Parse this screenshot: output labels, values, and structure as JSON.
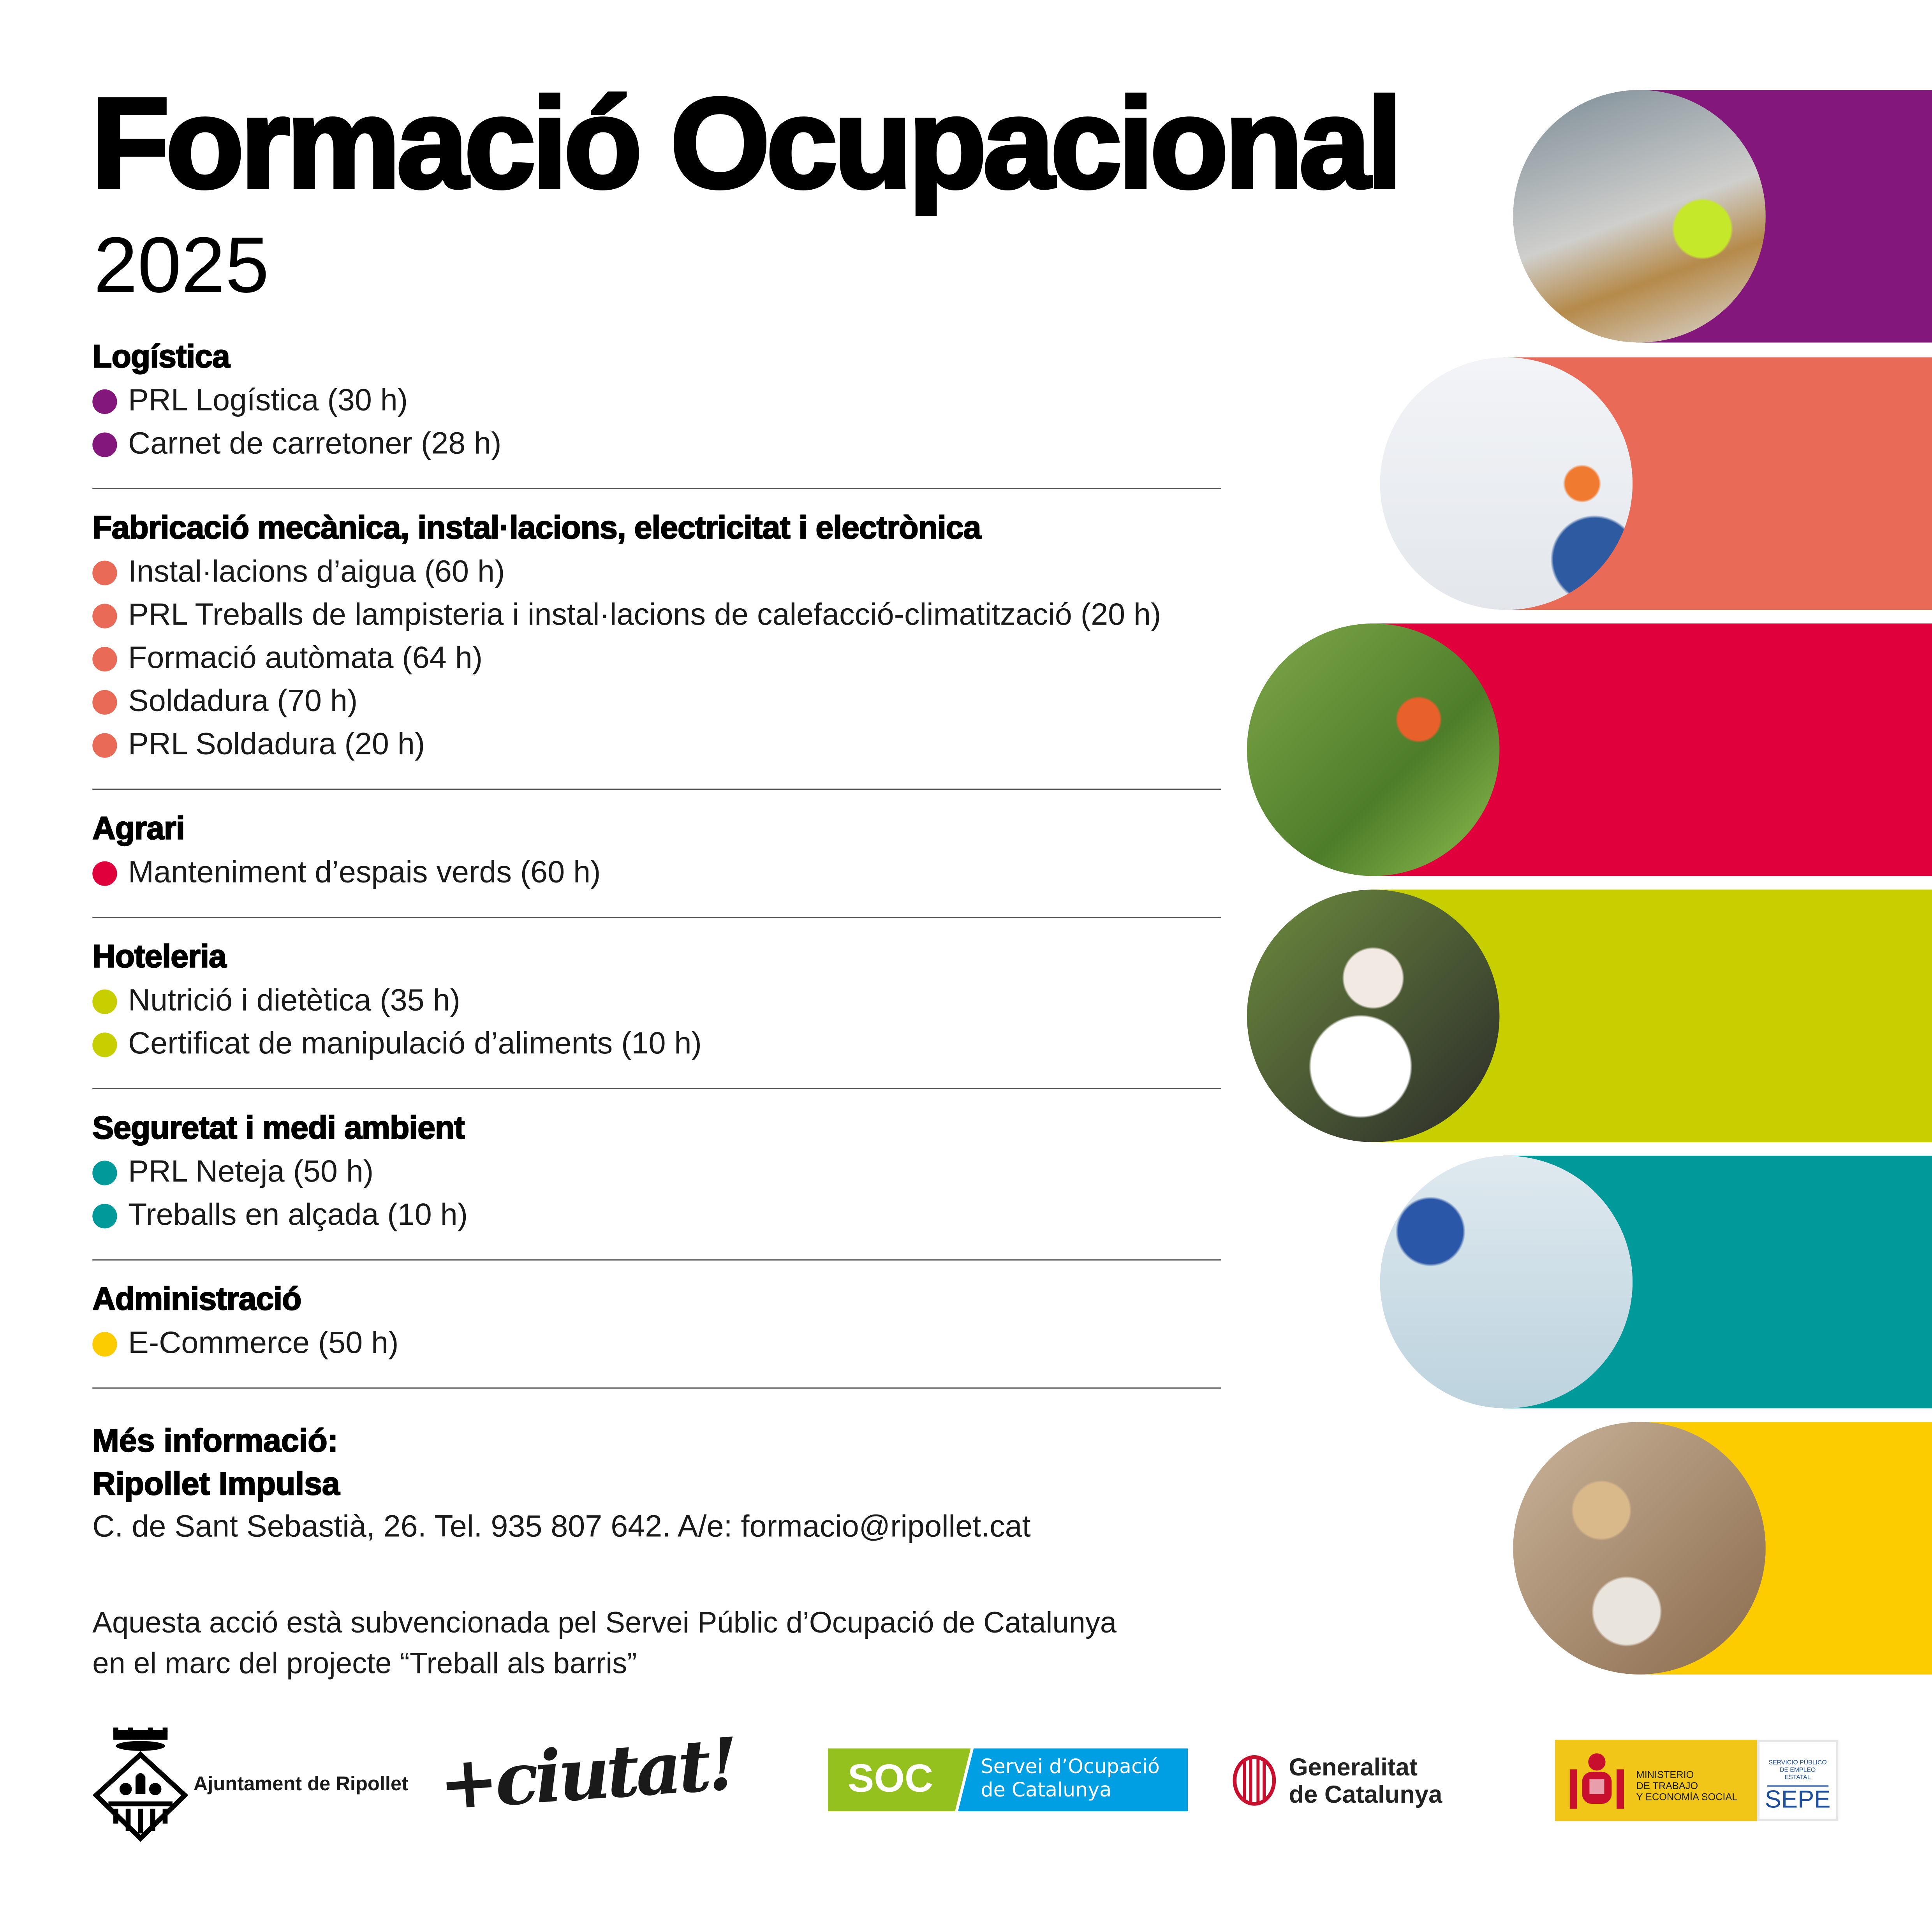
{
  "title": "Formació Ocupacional",
  "year": "2025",
  "sections": [
    {
      "heading": "Logística",
      "color": "#84177c",
      "items": [
        "PRL Logística (30 h)",
        "Carnet de carretoner (28 h)"
      ]
    },
    {
      "heading": "Fabricació mecànica, instal·lacions, electricitat i electrònica",
      "color": "#e96a57",
      "items": [
        "Instal·lacions d’aigua (60 h)",
        "PRL Treballs de lampisteria i instal·lacions de calefacció-climatització (20 h)",
        "Formació autòmata (64 h)",
        "Soldadura (70 h)",
        "PRL Soldadura (20 h)"
      ]
    },
    {
      "heading": "Agrari",
      "color": "#e0003c",
      "items": [
        "Manteniment d’espais verds (60 h)"
      ]
    },
    {
      "heading": "Hoteleria",
      "color": "#c8cf00",
      "items": [
        "Nutrició i dietètica (35 h)",
        "Certificat de manipulació d’aliments (10 h)"
      ]
    },
    {
      "heading": "Seguretat i medi ambient",
      "color": "#009a9a",
      "items": [
        "PRL Neteja (50 h)",
        "Treballs en alçada (10 h)"
      ]
    },
    {
      "heading": "Administració",
      "color": "#fccb00",
      "items": [
        "E-Commerce (50 h)"
      ]
    }
  ],
  "info": {
    "heading1": "Més informació:",
    "heading2": "Ripollet Impulsa",
    "contact": "C. de Sant Sebastià, 26. Tel. 935 807 642. A/e: formacio@ripollet.cat"
  },
  "note": {
    "line1": "Aquesta acció està subvencionada pel Servei Públic d’Ocupació de Catalunya",
    "line2": "en el marc del projecte “Treball als barris”"
  },
  "photos": [
    "warehouse-forklift-photo",
    "plumber-pipe-photo",
    "grass-trimmer-photo",
    "food-handling-photo",
    "floor-cleaning-photo",
    "ecommerce-packing-photo"
  ],
  "logos": {
    "ripollet": "Ajuntament de Ripollet",
    "ciutat": "+ciutat!",
    "soc_short": "SOC",
    "soc_line1": "Servei d’Ocupació",
    "soc_line2": "de Catalunya",
    "gencat_line1": "Generalitat",
    "gencat_line2": "de Catalunya",
    "ministerio_line1": "MINISTERIO",
    "ministerio_line2": "DE TRABAJO",
    "ministerio_line3": "Y ECONOMÍA SOCIAL",
    "sepe_small1": "SERVICIO PÚBLICO",
    "sepe_small2": "DE EMPLEO ESTATAL",
    "sepe": "SEPE",
    "soc_green": "#95c11f",
    "soc_blue": "#009fe3",
    "ministerio_yellow": "#f1c618",
    "sepe_blue": "#1d4f9c"
  }
}
